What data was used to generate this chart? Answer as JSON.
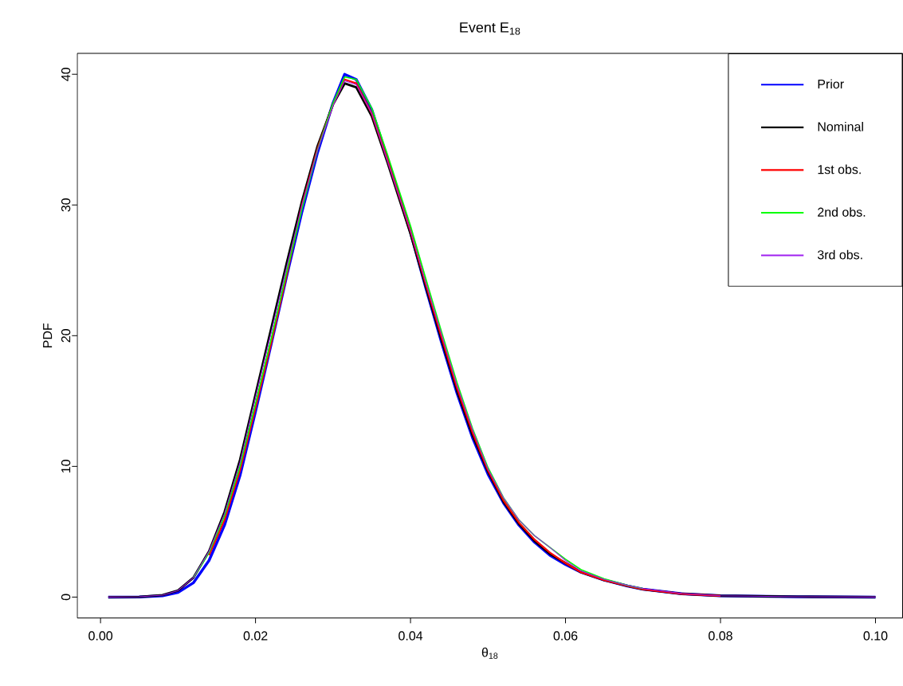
{
  "chart_data": {
    "type": "line",
    "title": "Event E$_{18}$",
    "xlabel": "θ$_{18}$",
    "ylabel": "PDF",
    "xlim": [
      -0.003,
      0.1035
    ],
    "ylim": [
      -1.6,
      41.6
    ],
    "xticks": [
      {
        "value": 0,
        "label": "0.00"
      },
      {
        "value": 0.02,
        "label": "0.02"
      },
      {
        "value": 0.04,
        "label": "0.04"
      },
      {
        "value": 0.06,
        "label": "0.06"
      },
      {
        "value": 0.08,
        "label": "0.08"
      },
      {
        "value": 0.1,
        "label": "0.10"
      }
    ],
    "yticks": [
      0,
      10,
      20,
      30,
      40
    ],
    "legend": "top right",
    "x": [
      0.001,
      0.005,
      0.008,
      0.01,
      0.012,
      0.014,
      0.016,
      0.018,
      0.02,
      0.022,
      0.024,
      0.026,
      0.028,
      0.03,
      0.0315,
      0.033,
      0.035,
      0.037,
      0.04,
      0.042,
      0.044,
      0.046,
      0.048,
      0.05,
      0.052,
      0.054,
      0.056,
      0.058,
      0.06,
      0.062,
      0.065,
      0.068,
      0.07,
      0.075,
      0.08,
      0.09,
      0.1
    ],
    "series": [
      {
        "name": "Prior",
        "color": "#0000ff",
        "values": [
          0,
          0.01,
          0.1,
          0.35,
          1.1,
          2.8,
          5.5,
          9.3,
          14.2,
          19.3,
          24.5,
          29.5,
          34.0,
          37.8,
          40.0,
          39.6,
          37.3,
          33.6,
          27.9,
          23.6,
          19.5,
          15.6,
          12.2,
          9.4,
          7.2,
          5.5,
          4.2,
          3.2,
          2.5,
          1.9,
          1.3,
          0.85,
          0.6,
          0.25,
          0.1,
          0.03,
          0
        ]
      },
      {
        "name": "Nominal",
        "color": "#000000",
        "values": [
          0,
          0.02,
          0.15,
          0.5,
          1.5,
          3.5,
          6.5,
          10.5,
          15.5,
          20.5,
          25.5,
          30.3,
          34.5,
          37.7,
          39.3,
          39.0,
          36.8,
          33.3,
          27.8,
          23.7,
          19.7,
          15.8,
          12.4,
          9.6,
          7.3,
          5.6,
          4.3,
          3.3,
          2.6,
          1.9,
          1.3,
          0.85,
          0.6,
          0.25,
          0.1,
          0.03,
          0
        ]
      },
      {
        "name": "1st obs.",
        "color": "#ff0000",
        "values": [
          null,
          null,
          null,
          null,
          null,
          3.2,
          5.9,
          9.7,
          14.5,
          19.4,
          24.6,
          30.0,
          34.3,
          37.7,
          39.6,
          39.3,
          37.0,
          33.5,
          28.0,
          23.9,
          19.9,
          16.0,
          12.6,
          9.7,
          7.4,
          5.7,
          4.4,
          3.4,
          2.6,
          1.9,
          1.3,
          0.85,
          0.6,
          0.25,
          0.1,
          null,
          null
        ]
      },
      {
        "name": "2nd obs.",
        "color": "#00ff00",
        "values": [
          null,
          null,
          null,
          null,
          1.5,
          3.4,
          6.2,
          10.0,
          14.8,
          19.7,
          24.8,
          29.7,
          34.2,
          37.8,
          39.8,
          39.6,
          37.4,
          33.9,
          28.4,
          24.3,
          20.3,
          16.4,
          12.9,
          9.9,
          7.6,
          5.9,
          4.7,
          3.8,
          2.9,
          2.1,
          1.4,
          0.9,
          0.65,
          null,
          null,
          null,
          null
        ]
      },
      {
        "name": "3rd obs.",
        "color": "#a020f0",
        "values": [
          0,
          0.02,
          0.15,
          0.5,
          1.5,
          3.5,
          6.4,
          10.3,
          15.3,
          20.2,
          25.2,
          30.0,
          34.2,
          37.6,
          39.5,
          39.2,
          37.0,
          33.4,
          28.0,
          24.0,
          20.1,
          16.2,
          12.8,
          9.8,
          7.6,
          5.9,
          4.7,
          3.8,
          2.8,
          2.0,
          1.35,
          0.9,
          0.65,
          0.27,
          0.1,
          0.03,
          0
        ]
      }
    ]
  }
}
